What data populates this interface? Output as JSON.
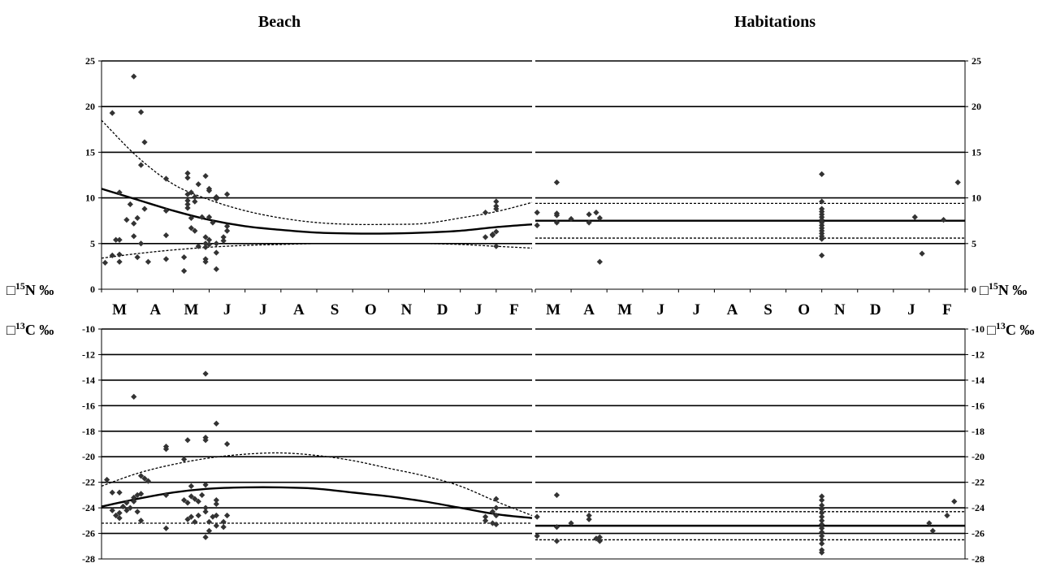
{
  "titles": {
    "left": "Beach",
    "right": "Habitations"
  },
  "labels": {
    "n_left": {
      "box": "□",
      "sup": "15",
      "rest": "N ‰"
    },
    "n_right": {
      "box": "□",
      "sup": "15",
      "rest": "N ‰"
    },
    "c_left": {
      "box": "□",
      "sup": "13",
      "rest": "C ‰"
    },
    "c_right": {
      "box": "□",
      "sup": "13",
      "rest": "C ‰"
    }
  },
  "months": [
    "M",
    "A",
    "M",
    "J",
    "J",
    "A",
    "S",
    "O",
    "N",
    "D",
    "J",
    "F"
  ],
  "colors": {
    "line": "#000000",
    "point": "#333333",
    "background": "#ffffff"
  },
  "chart_data": [
    {
      "type": "scatter",
      "title": "Beach",
      "ylabel": "15N ‰",
      "ylim": [
        0,
        25
      ],
      "yticks": [
        "0",
        "5",
        "10",
        "15",
        "20",
        "25"
      ],
      "xticks": [
        "M",
        "A",
        "M",
        "J",
        "J",
        "A",
        "S",
        "O",
        "N",
        "D",
        "J",
        "F"
      ],
      "grid": true,
      "points": [
        [
          0.1,
          2.9
        ],
        [
          0.3,
          3.7
        ],
        [
          0.4,
          5.4
        ],
        [
          0.3,
          19.3
        ],
        [
          0.5,
          10.6
        ],
        [
          0.5,
          5.4
        ],
        [
          0.5,
          3.0
        ],
        [
          0.5,
          3.8
        ],
        [
          0.7,
          7.6
        ],
        [
          0.8,
          9.3
        ],
        [
          0.9,
          7.2
        ],
        [
          0.9,
          5.8
        ],
        [
          0.9,
          23.3
        ],
        [
          1.0,
          7.8
        ],
        [
          1.0,
          3.5
        ],
        [
          1.1,
          19.4
        ],
        [
          1.1,
          13.6
        ],
        [
          1.2,
          16.1
        ],
        [
          1.1,
          5.0
        ],
        [
          1.2,
          8.8
        ],
        [
          1.3,
          3.0
        ],
        [
          1.8,
          12.1
        ],
        [
          1.8,
          8.6
        ],
        [
          1.8,
          5.9
        ],
        [
          1.8,
          3.3
        ],
        [
          2.3,
          3.5
        ],
        [
          2.3,
          2.0
        ],
        [
          2.4,
          12.7
        ],
        [
          2.4,
          12.2
        ],
        [
          2.4,
          10.4
        ],
        [
          2.4,
          9.7
        ],
        [
          2.4,
          9.3
        ],
        [
          2.4,
          8.9
        ],
        [
          2.5,
          10.6
        ],
        [
          2.5,
          7.8
        ],
        [
          2.5,
          6.7
        ],
        [
          2.6,
          10.1
        ],
        [
          2.6,
          9.6
        ],
        [
          2.6,
          6.4
        ],
        [
          2.7,
          11.5
        ],
        [
          2.8,
          7.9
        ],
        [
          2.7,
          4.7
        ],
        [
          2.9,
          5.7
        ],
        [
          2.9,
          5.0
        ],
        [
          2.9,
          12.4
        ],
        [
          3.0,
          10.8
        ],
        [
          3.0,
          11.0
        ],
        [
          3.0,
          7.9
        ],
        [
          2.9,
          4.6
        ],
        [
          3.0,
          4.9
        ],
        [
          2.9,
          3.0
        ],
        [
          2.9,
          3.3
        ],
        [
          3.0,
          5.4
        ],
        [
          3.1,
          7.3
        ],
        [
          3.2,
          5.0
        ],
        [
          3.2,
          4.0
        ],
        [
          3.2,
          2.2
        ],
        [
          3.2,
          10.1
        ],
        [
          3.2,
          9.9
        ],
        [
          3.4,
          5.7
        ],
        [
          3.4,
          5.3
        ],
        [
          3.5,
          6.4
        ],
        [
          3.5,
          6.9
        ],
        [
          3.5,
          10.4
        ],
        [
          10.7,
          5.7
        ],
        [
          10.7,
          8.4
        ],
        [
          10.9,
          5.9
        ],
        [
          10.9,
          6.0
        ],
        [
          11.0,
          9.6
        ],
        [
          11.0,
          9.1
        ],
        [
          11.0,
          8.8
        ],
        [
          11.0,
          6.3
        ],
        [
          11.0,
          4.7
        ]
      ],
      "series": [
        {
          "name": "",
          "style": "solid",
          "x": [
            0,
            1,
            2,
            3,
            4,
            5,
            6,
            7,
            8,
            9,
            10,
            11,
            12
          ],
          "y": [
            11.0,
            9.8,
            8.6,
            7.6,
            6.9,
            6.5,
            6.2,
            6.1,
            6.1,
            6.2,
            6.4,
            6.8,
            7.1
          ]
        },
        {
          "name": "",
          "style": "dashed",
          "x": [
            0,
            1,
            2,
            3,
            4,
            5,
            6,
            7,
            8,
            9,
            10,
            11,
            12
          ],
          "y": [
            18.5,
            14.5,
            11.5,
            9.8,
            8.6,
            7.8,
            7.3,
            7.1,
            7.1,
            7.2,
            7.8,
            8.5,
            9.5
          ]
        },
        {
          "name": "",
          "style": "dashed",
          "x": [
            0,
            1,
            2,
            3,
            4,
            5,
            6,
            7,
            8,
            9,
            10,
            11,
            12
          ],
          "y": [
            3.4,
            3.9,
            4.3,
            4.6,
            4.8,
            4.9,
            5.0,
            5.0,
            5.0,
            5.0,
            4.9,
            4.7,
            4.5
          ]
        }
      ]
    },
    {
      "type": "scatter",
      "title": "Habitations",
      "ylabel": "15N ‰",
      "ylim": [
        0,
        25
      ],
      "yticks": [
        "0",
        "5",
        "10",
        "15",
        "20",
        "25"
      ],
      "xticks": [
        "M",
        "A",
        "M",
        "J",
        "J",
        "A",
        "S",
        "O",
        "N",
        "D",
        "J",
        "F"
      ],
      "grid": true,
      "points": [
        [
          0.05,
          8.4
        ],
        [
          0.05,
          7.0
        ],
        [
          0.6,
          11.7
        ],
        [
          0.6,
          8.3
        ],
        [
          0.6,
          8.1
        ],
        [
          0.6,
          7.3
        ],
        [
          1.0,
          7.7
        ],
        [
          1.5,
          8.2
        ],
        [
          1.5,
          7.3
        ],
        [
          1.7,
          8.4
        ],
        [
          1.8,
          7.8
        ],
        [
          1.8,
          3.0
        ],
        [
          8.0,
          12.6
        ],
        [
          8.0,
          9.6
        ],
        [
          8.0,
          8.8
        ],
        [
          8.0,
          8.5
        ],
        [
          8.0,
          8.2
        ],
        [
          8.0,
          7.9
        ],
        [
          8.0,
          7.6
        ],
        [
          8.0,
          7.3
        ],
        [
          8.0,
          7.0
        ],
        [
          8.0,
          6.7
        ],
        [
          8.0,
          6.4
        ],
        [
          8.0,
          6.1
        ],
        [
          8.0,
          5.8
        ],
        [
          8.0,
          5.5
        ],
        [
          8.0,
          3.7
        ],
        [
          10.6,
          7.9
        ],
        [
          10.8,
          3.9
        ],
        [
          11.4,
          7.6
        ],
        [
          11.8,
          11.7
        ]
      ],
      "series": [
        {
          "name": "",
          "style": "solid",
          "x": [
            0,
            12
          ],
          "y": [
            7.5,
            7.5
          ]
        },
        {
          "name": "",
          "style": "dashed",
          "x": [
            0,
            12
          ],
          "y": [
            9.4,
            9.4
          ]
        },
        {
          "name": "",
          "style": "dashed",
          "x": [
            0,
            12
          ],
          "y": [
            5.6,
            5.6
          ]
        }
      ]
    },
    {
      "type": "scatter",
      "title": "",
      "ylabel": "13C ‰",
      "ylim": [
        -28,
        -10
      ],
      "yticks": [
        "-28",
        "-26",
        "-24",
        "-22",
        "-20",
        "-18",
        "-16",
        "-14",
        "-12",
        "-10"
      ],
      "grid": true,
      "points": [
        [
          0.3,
          -22.8
        ],
        [
          0.3,
          -24.2
        ],
        [
          0.4,
          -24.6
        ],
        [
          0.5,
          -22.8
        ],
        [
          0.5,
          -24.4
        ],
        [
          0.5,
          -24.8
        ],
        [
          0.6,
          -23.9
        ],
        [
          0.7,
          -24.2
        ],
        [
          0.7,
          -23.6
        ],
        [
          0.8,
          -24.0
        ],
        [
          0.9,
          -15.3
        ],
        [
          0.9,
          -23.2
        ],
        [
          0.9,
          -23.5
        ],
        [
          1.0,
          -24.3
        ],
        [
          1.0,
          -23.0
        ],
        [
          1.1,
          -25.0
        ],
        [
          1.1,
          -22.9
        ],
        [
          1.1,
          -21.5
        ],
        [
          1.2,
          -21.7
        ],
        [
          1.3,
          -21.9
        ],
        [
          0.15,
          -21.8
        ],
        [
          1.8,
          -19.2
        ],
        [
          1.8,
          -19.4
        ],
        [
          1.8,
          -23.0
        ],
        [
          1.8,
          -25.6
        ],
        [
          2.3,
          -20.2
        ],
        [
          2.3,
          -23.4
        ],
        [
          2.4,
          -18.7
        ],
        [
          2.4,
          -23.6
        ],
        [
          2.4,
          -24.9
        ],
        [
          2.5,
          -22.3
        ],
        [
          2.5,
          -23.1
        ],
        [
          2.5,
          -24.7
        ],
        [
          2.6,
          -23.3
        ],
        [
          2.6,
          -25.1
        ],
        [
          2.7,
          -23.5
        ],
        [
          2.7,
          -24.6
        ],
        [
          2.8,
          -23.0
        ],
        [
          2.9,
          -24.0
        ],
        [
          2.9,
          -13.5
        ],
        [
          2.9,
          -18.5
        ],
        [
          2.9,
          -18.7
        ],
        [
          2.9,
          -22.2
        ],
        [
          2.9,
          -24.3
        ],
        [
          2.9,
          -26.3
        ],
        [
          3.0,
          -25.1
        ],
        [
          3.0,
          -25.8
        ],
        [
          3.1,
          -24.7
        ],
        [
          3.2,
          -17.4
        ],
        [
          3.2,
          -23.4
        ],
        [
          3.2,
          -23.7
        ],
        [
          3.2,
          -24.6
        ],
        [
          3.2,
          -25.4
        ],
        [
          3.4,
          -25.5
        ],
        [
          3.4,
          -25.1
        ],
        [
          3.5,
          -24.6
        ],
        [
          3.5,
          -19.0
        ],
        [
          10.7,
          -24.7
        ],
        [
          10.7,
          -25.0
        ],
        [
          10.9,
          -24.3
        ],
        [
          10.9,
          -25.2
        ],
        [
          11.0,
          -23.3
        ],
        [
          11.0,
          -24.0
        ],
        [
          11.0,
          -24.6
        ],
        [
          11.0,
          -25.3
        ]
      ],
      "series": [
        {
          "name": "",
          "style": "solid",
          "x": [
            0,
            1,
            2,
            3,
            4,
            5,
            6,
            7,
            8,
            9,
            10,
            11,
            12
          ],
          "y": [
            -23.9,
            -23.3,
            -22.8,
            -22.5,
            -22.4,
            -22.4,
            -22.5,
            -22.8,
            -23.1,
            -23.5,
            -24.0,
            -24.5,
            -24.8
          ]
        },
        {
          "name": "",
          "style": "dashed",
          "x": [
            0,
            1,
            2,
            3,
            4,
            5,
            6,
            7,
            8,
            9,
            10,
            11,
            12
          ],
          "y": [
            -22.3,
            -21.3,
            -20.6,
            -20.1,
            -19.8,
            -19.7,
            -19.9,
            -20.3,
            -20.9,
            -21.5,
            -22.3,
            -23.5,
            -24.6
          ]
        },
        {
          "name": "",
          "style": "dashed",
          "x": [
            0,
            12
          ],
          "y": [
            -25.2,
            -25.2
          ]
        }
      ]
    },
    {
      "type": "scatter",
      "title": "",
      "ylabel": "13C ‰",
      "ylim": [
        -28,
        -10
      ],
      "yticks": [
        "-28",
        "-26",
        "-24",
        "-22",
        "-20",
        "-18",
        "-16",
        "-14",
        "-12",
        "-10"
      ],
      "grid": true,
      "points": [
        [
          0.05,
          -24.7
        ],
        [
          0.05,
          -26.2
        ],
        [
          0.6,
          -23.0
        ],
        [
          0.6,
          -25.5
        ],
        [
          0.6,
          -26.6
        ],
        [
          1.0,
          -25.2
        ],
        [
          1.5,
          -24.6
        ],
        [
          1.5,
          -24.9
        ],
        [
          1.7,
          -26.4
        ],
        [
          1.8,
          -26.6
        ],
        [
          1.8,
          -26.3
        ],
        [
          8.0,
          -23.1
        ],
        [
          8.0,
          -23.4
        ],
        [
          8.0,
          -23.8
        ],
        [
          8.0,
          -24.1
        ],
        [
          8.0,
          -24.4
        ],
        [
          8.0,
          -24.7
        ],
        [
          8.0,
          -25.0
        ],
        [
          8.0,
          -25.3
        ],
        [
          8.0,
          -25.6
        ],
        [
          8.0,
          -25.9
        ],
        [
          8.0,
          -26.2
        ],
        [
          8.0,
          -26.5
        ],
        [
          8.0,
          -26.8
        ],
        [
          8.0,
          -27.3
        ],
        [
          8.0,
          -27.5
        ],
        [
          11.0,
          -25.2
        ],
        [
          11.1,
          -25.8
        ],
        [
          11.5,
          -24.6
        ],
        [
          11.7,
          -23.5
        ]
      ],
      "series": [
        {
          "name": "",
          "style": "solid",
          "x": [
            0,
            12
          ],
          "y": [
            -25.4,
            -25.4
          ]
        },
        {
          "name": "",
          "style": "dashed",
          "x": [
            0,
            12
          ],
          "y": [
            -24.3,
            -24.3
          ]
        },
        {
          "name": "",
          "style": "dashed",
          "x": [
            0,
            12
          ],
          "y": [
            -26.5,
            -26.5
          ]
        }
      ]
    }
  ]
}
